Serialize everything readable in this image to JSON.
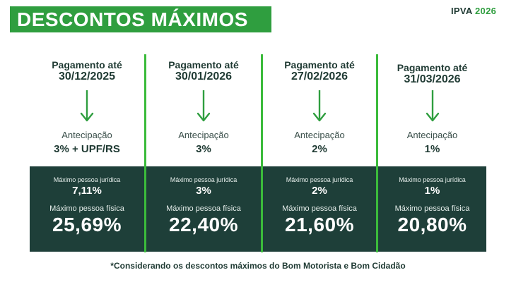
{
  "header": {
    "title": "DESCONTOS MÁXIMOS",
    "ipva_label": "IPVA",
    "ipva_year": "2026"
  },
  "colors": {
    "accent_green": "#2f9e3f",
    "dark_teal": "#1e3f39"
  },
  "icons": [
    "arrow-down-icon"
  ],
  "columns": [
    {
      "payment_label": "Pagamento até",
      "payment_date": "30/12/2025",
      "anticipation_label": "Antecipação",
      "anticipation_value": "3% + UPF/RS",
      "pj_label": "Máximo pessoa jurídica",
      "pj_value": "7,11%",
      "pf_label": "Máximo pessoa física",
      "pf_value": "25,69%"
    },
    {
      "payment_label": "Pagamento até",
      "payment_date": "30/01/2026",
      "anticipation_label": "Antecipação",
      "anticipation_value": "3%",
      "pj_label": "Máximo pessoa jurídica",
      "pj_value": "3%",
      "pf_label": "Máximo pessoa física",
      "pf_value": "22,40%"
    },
    {
      "payment_label": "Pagamento até",
      "payment_date": "27/02/2026",
      "anticipation_label": "Antecipação",
      "anticipation_value": "2%",
      "pj_label": "Máximo pessoa jurídica",
      "pj_value": "2%",
      "pf_label": "Máximo pessoa física",
      "pf_value": "21,60%"
    },
    {
      "payment_label": "Pagamento até",
      "payment_date": "31/03/2026",
      "anticipation_label": "Antecipação",
      "anticipation_value": "1%",
      "pj_label": "Máximo pessoa jurídica",
      "pj_value": "1%",
      "pf_label": "Máximo pessoa física",
      "pf_value": "20,80%"
    }
  ],
  "footnote": "*Considerando os descontos máximos do Bom Motorista e Bom Cidadão"
}
